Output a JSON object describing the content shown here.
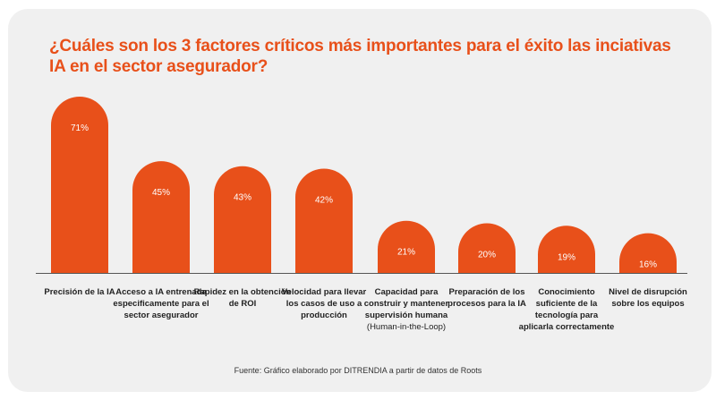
{
  "title": "¿Cuáles son los 3 factores críticos más importantes para el éxito las inciativas IA en el sector asegurador?",
  "source": "Fuente: Gráfico elaborado por DITRENDIA a partir de datos de Roots",
  "colors": {
    "bar": "#e8501a",
    "title": "#e8501a",
    "bar_label": "#ffffff"
  },
  "chart_data": {
    "type": "bar",
    "title": "¿Cuáles son los 3 factores críticos más importantes para el éxito las inciativas IA en el sector asegurador?",
    "categories": [
      "Precisión de la IA",
      "Acceso a IA entrenada especificamente  para el sector asegurador",
      "Rapidez en la obtención de ROI",
      "Velocidad para llevar los casos de uso a producción",
      "Capacidad para construir y mantener supervisión humana",
      "Preparación de los procesos para la IA",
      "Conocimiento suficiente de la tecnología para aplicarla correctamente",
      "Nivel de disrupción sobre los equipos"
    ],
    "category_notes": [
      "",
      "",
      "",
      "",
      "(Human-in-the-Loop)",
      "",
      "",
      ""
    ],
    "values": [
      71,
      45,
      43,
      42,
      21,
      20,
      19,
      16
    ],
    "data_labels": [
      "71%",
      "45%",
      "43%",
      "42%",
      "21%",
      "20%",
      "19%",
      "16%"
    ],
    "unit": "%",
    "ylim": [
      0,
      75
    ],
    "grid": false,
    "legend": "none"
  }
}
